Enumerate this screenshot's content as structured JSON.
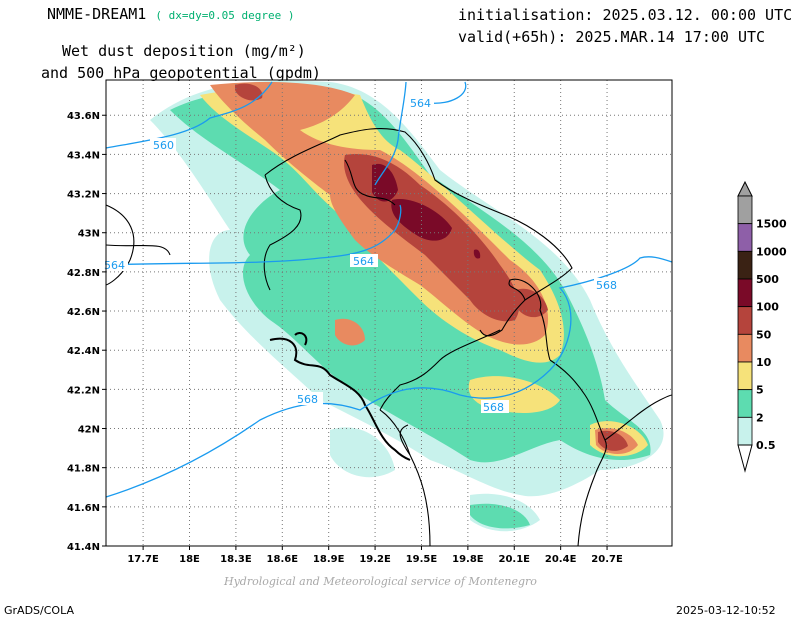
{
  "header": {
    "model": "NMME-DREAM1",
    "resolution_note": "( dx=dy=0.05 degree )",
    "init": "initialisation: 2025.03.12. 00:00 UTC",
    "valid": "valid(+65h): 2025.MAR.14 17:00 UTC",
    "variable_line1": "Wet dust deposition (mg/m²)",
    "variable_line2": "and 500 hPa geopotential (gpdm)"
  },
  "footer": {
    "credit": "Hydrological and Meteorological service of Montenegro",
    "software": "GrADS/COLA",
    "timestamp": "2025-03-12-10:52"
  },
  "axes": {
    "x_ticks": [
      "17.7E",
      "18E",
      "18.3E",
      "18.6E",
      "18.9E",
      "19.2E",
      "19.5E",
      "19.8E",
      "20.1E",
      "20.4E",
      "20.7E"
    ],
    "y_ticks": [
      "43.6N",
      "43.4N",
      "43.2N",
      "43N",
      "42.8N",
      "42.6N",
      "42.4N",
      "42.2N",
      "42N",
      "41.8N",
      "41.6N",
      "41.4N"
    ],
    "lon_range": [
      17.46,
      21.12
    ],
    "lat_range": [
      41.4,
      43.78
    ],
    "grid": true
  },
  "contours": {
    "labels": [
      "560",
      "564",
      "564",
      "564",
      "568",
      "568",
      "568"
    ],
    "color": "#1a9bef"
  },
  "legend": {
    "labels": [
      "1500",
      "1000",
      "500",
      "100",
      "50",
      "10",
      "5",
      "2",
      "0.5"
    ],
    "colors": [
      "#a0a0a0",
      "#8e5fa8",
      "#3a2214",
      "#7a0a28",
      "#b5443c",
      "#e88a60",
      "#f6e27a",
      "#5ddcb0",
      "#c8f2ec"
    ]
  }
}
